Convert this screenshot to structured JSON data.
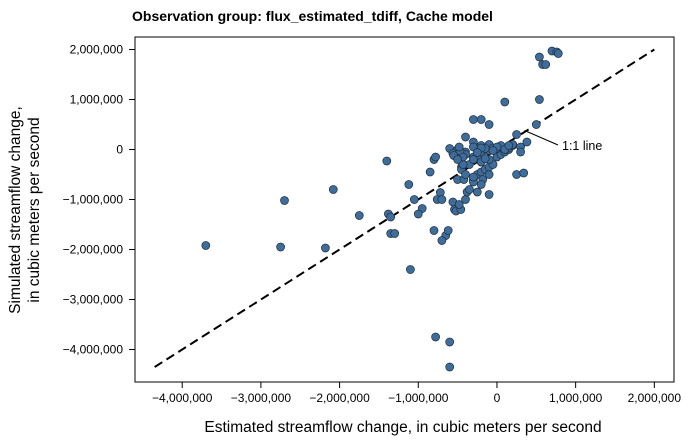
{
  "chart_data": {
    "type": "scatter",
    "title": "Observation group: flux_estimated_tdiff, Cache model",
    "xlabel": "Estimated streamflow change, in cubic meters per second",
    "ylabel_lines": [
      "Simulated streamflow change,",
      "in cubic meters per second"
    ],
    "xlim": [
      -4600000,
      2250000
    ],
    "ylim": [
      -4650000,
      2250000
    ],
    "x_ticks": [
      -4000000,
      -3000000,
      -2000000,
      -1000000,
      0,
      1000000,
      2000000
    ],
    "x_tick_labels": [
      "−4,000,000",
      "−3,000,000",
      "−2,000,000",
      "−1,000,000",
      "0",
      "1,000,000",
      "2,000,000"
    ],
    "y_ticks": [
      2000000,
      1000000,
      0,
      -1000000,
      -2000000,
      -3000000,
      -4000000
    ],
    "y_tick_labels": [
      "2,000,000",
      "1,000,000",
      "0",
      "−1,000,000",
      "−2,000,000",
      "−3,000,000",
      "−4,000,000"
    ],
    "reference_line": {
      "label": "1:1 line",
      "from": [
        -4350000,
        -4350000
      ],
      "to": [
        2000000,
        2000000
      ],
      "style": "dashed"
    },
    "annotation_point": [
      300000,
      300000
    ],
    "point_color": "#3f6d9b",
    "series": [
      {
        "name": "observations",
        "x": [
          -3700000,
          -2750000,
          -2700000,
          -2180000,
          -2080000,
          -1750000,
          -1400000,
          -1380000,
          -1350000,
          -1350000,
          -1300000,
          -1120000,
          -1100000,
          -1050000,
          -950000,
          -1000000,
          -800000,
          -780000,
          -760000,
          -720000,
          -700000,
          -650000,
          -700000,
          -620000,
          -600000,
          -600000,
          -560000,
          -540000,
          -520000,
          -500000,
          -460000,
          -480000,
          -420000,
          -400000,
          -380000,
          -350000,
          -300000,
          -300000,
          -250000,
          -200000,
          -180000,
          -150000,
          -100000,
          -100000,
          -50000,
          0,
          50000,
          100000,
          150000,
          200000,
          250000,
          -300000,
          -200000,
          -100000,
          -400000,
          -300000,
          -600000,
          -500000,
          -400000,
          -300000,
          -200000,
          -150000,
          -100000,
          -50000,
          0,
          50000,
          100000,
          150000,
          200000,
          -500000,
          -400000,
          -300000,
          -100000,
          -200000,
          -350000,
          -450000,
          -450000,
          -400000,
          -300000,
          -200000,
          -250000,
          -100000,
          -850000,
          -800000,
          -780000,
          -560000,
          -470000,
          -430000,
          -430000,
          -480000,
          -250000,
          -200000,
          -100000,
          -50000,
          50000,
          -300000,
          -200000,
          -150000,
          0,
          100000,
          200000,
          300000,
          300000,
          -50000,
          -150000,
          -200000,
          -250000,
          -550000,
          -500000,
          250000,
          340000,
          380000,
          150000,
          100000,
          500000,
          540000,
          580000,
          540000,
          620000,
          700000,
          760000,
          780000
        ],
        "y": [
          -1920000,
          -1950000,
          -1020000,
          -1970000,
          -800000,
          -1320000,
          -230000,
          -1290000,
          -1680000,
          -1350000,
          -1680000,
          -700000,
          -2400000,
          -1000000,
          -1180000,
          -1290000,
          -1620000,
          -3750000,
          -1000000,
          -860000,
          -1000000,
          -1720000,
          -1820000,
          -1620000,
          -4350000,
          -3850000,
          -1050000,
          -1200000,
          -1230000,
          -600000,
          -1200000,
          -1100000,
          -600000,
          -1000000,
          -850000,
          -800000,
          -600000,
          -650000,
          -500000,
          -450000,
          -600000,
          -400000,
          -500000,
          -350000,
          -300000,
          -150000,
          -100000,
          -50000,
          0,
          100000,
          300000,
          600000,
          600000,
          500000,
          250000,
          150000,
          20000,
          0,
          -50000,
          50000,
          80000,
          0,
          -20000,
          0,
          20000,
          50000,
          0,
          30000,
          80000,
          -100000,
          -100000,
          -150000,
          -200000,
          -250000,
          -300000,
          -350000,
          -400000,
          -500000,
          -550000,
          -700000,
          -850000,
          -900000,
          -450000,
          -200000,
          -150000,
          -80000,
          -30000,
          -300000,
          -150000,
          50000,
          -150000,
          -50000,
          100000,
          30000,
          80000,
          -200000,
          -250000,
          -180000,
          50000,
          0,
          100000,
          50000,
          -50000,
          -20000,
          20000,
          30000,
          -60000,
          -120000,
          -200000,
          -500000,
          -470000,
          150000,
          80000,
          950000,
          500000,
          1850000,
          1700000,
          1000000,
          1700000,
          1970000,
          1950000,
          1920000
        ]
      }
    ]
  }
}
